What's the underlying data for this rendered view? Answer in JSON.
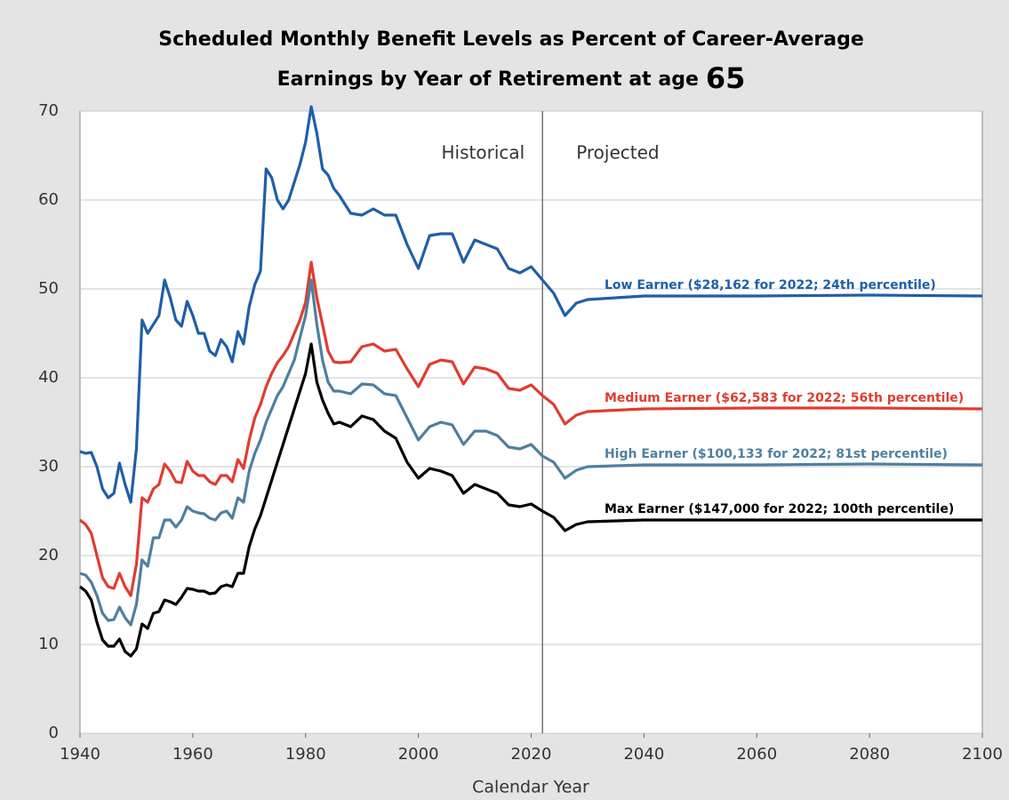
{
  "chart_data": {
    "type": "line",
    "title": [
      "Scheduled Monthly Benefit Levels as Percent of Career-Average",
      "Earnings by Year of Retirement at age",
      "65"
    ],
    "xlabel": "Calendar Year",
    "x": [
      1940,
      1941,
      1942,
      1943,
      1944,
      1945,
      1946,
      1947,
      1948,
      1949,
      1950,
      1951,
      1952,
      1953,
      1954,
      1955,
      1956,
      1957,
      1958,
      1959,
      1960,
      1961,
      1962,
      1963,
      1964,
      1965,
      1966,
      1967,
      1968,
      1969,
      1970,
      1971,
      1972,
      1973,
      1974,
      1975,
      1976,
      1977,
      1978,
      1979,
      1980,
      1981,
      1982,
      1983,
      1984,
      1985,
      1986,
      1988,
      1990,
      1992,
      1994,
      1996,
      1998,
      2000,
      2002,
      2004,
      2006,
      2008,
      2010,
      2012,
      2014,
      2016,
      2018,
      2020,
      2022,
      2024,
      2026,
      2028,
      2030,
      2040,
      2060,
      2080,
      2100
    ],
    "series": [
      {
        "name": "Low Earner ($28,162 for 2022; 24th percentile)",
        "color": "#1f5fa8",
        "values": [
          31.7,
          31.5,
          31.6,
          30,
          27.5,
          26.5,
          27,
          30.4,
          28,
          26,
          32,
          46.5,
          45,
          46,
          47,
          51,
          49,
          46.5,
          45.8,
          48.6,
          47,
          45,
          45,
          43,
          42.5,
          44.3,
          43.5,
          41.8,
          45.2,
          43.8,
          48,
          50.5,
          52,
          63.5,
          62.5,
          60,
          59,
          60,
          62,
          64,
          66.5,
          70.5,
          67.5,
          63.5,
          62.8,
          61.3,
          60.5,
          58.5,
          58.3,
          59,
          58.3,
          58.3,
          55,
          52.3,
          56,
          56.2,
          56.2,
          53,
          55.5,
          55,
          54.5,
          52.3,
          51.8,
          52.5,
          51,
          49.5,
          47,
          48.4,
          48.8,
          49.2,
          49.2,
          49.3,
          49.2
        ]
      },
      {
        "name": "Medium Earner ($62,583 for 2022; 56th percentile)",
        "color": "#e03c31",
        "values": [
          24,
          23.5,
          22.5,
          20,
          17.5,
          16.5,
          16.3,
          18,
          16.5,
          15.5,
          19,
          26.5,
          26,
          27.5,
          28,
          30.3,
          29.5,
          28.3,
          28.2,
          30.6,
          29.5,
          29,
          29,
          28.3,
          28,
          29,
          29,
          28.3,
          30.8,
          29.8,
          33,
          35.5,
          37,
          39,
          40.5,
          41.7,
          42.5,
          43.5,
          45,
          46.5,
          48.5,
          53,
          49,
          46,
          43,
          41.8,
          41.7,
          41.8,
          43.5,
          43.8,
          43,
          43.2,
          41,
          39,
          41.5,
          42,
          41.8,
          39.3,
          41.2,
          41,
          40.5,
          38.8,
          38.6,
          39.2,
          38,
          37,
          34.8,
          35.8,
          36.2,
          36.5,
          36.6,
          36.6,
          36.5
        ]
      },
      {
        "name": "High Earner ($100,133 for 2022; 81st percentile)",
        "color": "#4f7f9f",
        "values": [
          18,
          17.8,
          17,
          15.5,
          13.5,
          12.7,
          12.8,
          14.2,
          13,
          12.2,
          14.5,
          19.5,
          18.8,
          22,
          22,
          24,
          24,
          23.2,
          24,
          25.5,
          25,
          24.8,
          24.7,
          24.2,
          24,
          24.8,
          25,
          24.2,
          26.5,
          26,
          29.5,
          31.5,
          33,
          35,
          36.5,
          38,
          39,
          40.5,
          42,
          44.5,
          47,
          51,
          46,
          42,
          39.5,
          38.5,
          38.5,
          38.2,
          39.3,
          39.2,
          38.2,
          38,
          35.5,
          33,
          34.5,
          35,
          34.7,
          32.5,
          34,
          34,
          33.5,
          32.2,
          32,
          32.5,
          31.2,
          30.5,
          28.7,
          29.6,
          30,
          30.2,
          30.2,
          30.3,
          30.2
        ]
      },
      {
        "name": "Max Earner ($147,000 for 2022; 100th percentile)",
        "color": "#000000",
        "values": [
          16.5,
          16,
          15,
          12.5,
          10.5,
          9.8,
          9.8,
          10.6,
          9.2,
          8.7,
          9.5,
          12.3,
          11.8,
          13.5,
          13.7,
          15,
          14.8,
          14.5,
          15.3,
          16.3,
          16.2,
          16,
          16,
          15.7,
          15.8,
          16.5,
          16.7,
          16.5,
          18,
          18,
          21,
          23,
          24.5,
          26.5,
          28.5,
          30.5,
          32.5,
          34.5,
          36.5,
          38.5,
          40.5,
          43.8,
          39.5,
          37.5,
          36,
          34.8,
          35,
          34.5,
          35.7,
          35.3,
          34,
          33.2,
          30.5,
          28.7,
          29.8,
          29.5,
          29,
          27,
          28,
          27.5,
          27,
          25.7,
          25.5,
          25.8,
          25,
          24.3,
          22.8,
          23.5,
          23.8,
          24,
          24,
          24,
          24
        ]
      }
    ],
    "xlim": [
      1940,
      2100
    ],
    "xticks": [
      1940,
      1960,
      1980,
      2000,
      2020,
      2040,
      2060,
      2080,
      2100
    ],
    "ylim": [
      0,
      70
    ],
    "yticks": [
      0,
      10,
      20,
      30,
      40,
      50,
      60,
      70
    ],
    "grid": true,
    "divider_x": 2022,
    "annotations": [
      "Historical",
      "Projected"
    ]
  }
}
